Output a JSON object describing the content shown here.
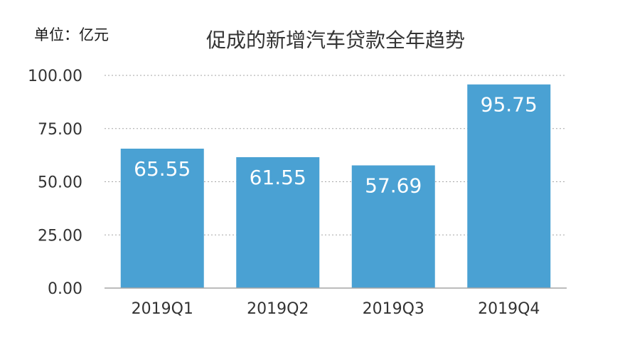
{
  "chart_data": {
    "type": "bar",
    "title": "促成的新增汽车贷款全年趋势",
    "unit_label": "单位：亿元",
    "xlabel": "",
    "ylabel": "",
    "categories": [
      "2019Q1",
      "2019Q2",
      "2019Q3",
      "2019Q4"
    ],
    "series": [
      {
        "values": [
          65.55,
          61.55,
          57.69,
          95.75
        ],
        "data_labels": [
          "65.55",
          "61.55",
          "57.69",
          "95.75"
        ],
        "color": "#4aa1d3"
      }
    ],
    "ylim": [
      0,
      100
    ],
    "y_ticks": [
      "0.00",
      "25.00",
      "50.00",
      "75.00",
      "100.00"
    ],
    "grid": true,
    "grid_style": "dotted",
    "legend": "none",
    "colors": {
      "bar": "#4aa1d3",
      "grid": "#a6a6a6",
      "text": "#333333",
      "data_label": "#ffffff"
    }
  }
}
